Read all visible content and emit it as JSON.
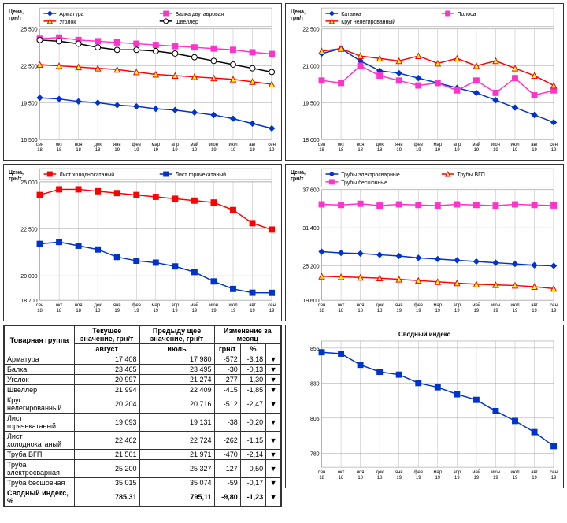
{
  "axis_y_label": "Цена, грн/т",
  "x_labels": [
    "сен 18",
    "окт 18",
    "ноя 18",
    "дек 18",
    "янв 19",
    "фев 19",
    "мар 19",
    "апр 19",
    "май 19",
    "июн 19",
    "июл 19",
    "авг 19",
    "сен 19"
  ],
  "colors": {
    "blue": "#0033cc",
    "magenta": "#ff33cc",
    "red": "#ff0000",
    "black": "#000000",
    "yellow_fill": "#ffff00",
    "white_fill": "#ffffff",
    "grid": "#888888",
    "bg": "#ffffff",
    "text": "#000000"
  },
  "font": {
    "axis": 8,
    "legend": 8,
    "title": 9
  },
  "charts": [
    {
      "id": "c1",
      "ylim": [
        16500,
        25500
      ],
      "yticks": [
        16500,
        19500,
        22500,
        25500
      ],
      "series": [
        {
          "name": "Арматура",
          "color": "#0033cc",
          "marker": "diamond",
          "fill": "#0033cc",
          "values": [
            19900,
            19800,
            19600,
            19500,
            19300,
            19200,
            19000,
            18900,
            18700,
            18500,
            18200,
            17800,
            17408
          ]
        },
        {
          "name": "Балка двутавровая",
          "color": "#ff33cc",
          "marker": "square",
          "fill": "#ff33cc",
          "values": [
            24700,
            24800,
            24600,
            24500,
            24400,
            24300,
            24200,
            24100,
            24000,
            23900,
            23800,
            23600,
            23465
          ]
        },
        {
          "name": "Уголок",
          "color": "#ff0000",
          "marker": "triangle",
          "fill": "#ffff00",
          "values": [
            22600,
            22500,
            22400,
            22300,
            22200,
            22000,
            21800,
            21700,
            21600,
            21500,
            21400,
            21200,
            20997
          ]
        },
        {
          "name": "Швеллер",
          "color": "#000000",
          "marker": "circle",
          "fill": "#ffffff",
          "values": [
            24600,
            24500,
            24300,
            24000,
            23800,
            23800,
            23700,
            23500,
            23200,
            22900,
            22600,
            22300,
            21994
          ]
        }
      ]
    },
    {
      "id": "c2",
      "ylim": [
        18000,
        22500
      ],
      "yticks": [
        18000,
        19500,
        21000,
        22500
      ],
      "series": [
        {
          "name": "Катанка",
          "color": "#0033cc",
          "marker": "diamond",
          "fill": "#0033cc",
          "values": [
            21500,
            21700,
            21200,
            20800,
            20700,
            20500,
            20300,
            20100,
            19900,
            19600,
            19300,
            19000,
            18700
          ]
        },
        {
          "name": "Полоса",
          "color": "#ff33cc",
          "marker": "square",
          "fill": "#ff33cc",
          "values": [
            20400,
            20300,
            21000,
            20600,
            20400,
            20200,
            20300,
            20000,
            20400,
            19900,
            20500,
            19800,
            20000
          ]
        },
        {
          "name": "Круг нелегированный",
          "color": "#ff0000",
          "marker": "triangle",
          "fill": "#ffff00",
          "values": [
            21600,
            21700,
            21400,
            21300,
            21200,
            21400,
            21100,
            21300,
            21000,
            21200,
            20900,
            20600,
            20204
          ]
        }
      ]
    },
    {
      "id": "c3",
      "ylim": [
        18700,
        25000
      ],
      "yticks": [
        18700,
        20000,
        22500,
        25000
      ],
      "series": [
        {
          "name": "Лист холоднокатаный",
          "color": "#ff0000",
          "marker": "square",
          "fill": "#ff0000",
          "values": [
            24300,
            24600,
            24600,
            24500,
            24400,
            24300,
            24200,
            24100,
            24000,
            23900,
            23500,
            22800,
            22462
          ]
        },
        {
          "name": "Лист горячекатаный",
          "color": "#0033cc",
          "marker": "square",
          "fill": "#0033cc",
          "values": [
            21700,
            21800,
            21600,
            21400,
            21000,
            20800,
            20700,
            20500,
            20200,
            19700,
            19300,
            19100,
            19093
          ]
        }
      ]
    },
    {
      "id": "c4",
      "ylim": [
        19600,
        37600
      ],
      "yticks": [
        19600,
        25200,
        31400,
        37600
      ],
      "series": [
        {
          "name": "Трубы электросварные",
          "color": "#0033cc",
          "marker": "diamond",
          "fill": "#0033cc",
          "values": [
            27500,
            27300,
            27200,
            27000,
            26800,
            26500,
            26300,
            26100,
            25900,
            25700,
            25500,
            25300,
            25200
          ]
        },
        {
          "name": "Трубы ВГП",
          "color": "#ff0000",
          "marker": "triangle",
          "fill": "#ffff00",
          "values": [
            23500,
            23400,
            23300,
            23200,
            23000,
            22800,
            22600,
            22400,
            22200,
            22100,
            22000,
            21800,
            21501
          ]
        },
        {
          "name": "Трубы бесшовные",
          "color": "#ff33cc",
          "marker": "square",
          "fill": "#ff33cc",
          "values": [
            35200,
            35100,
            35300,
            35000,
            35200,
            35100,
            35000,
            35200,
            35100,
            35000,
            35200,
            35100,
            35015
          ]
        }
      ]
    }
  ],
  "index_chart": {
    "title": "Сводный индекс",
    "ylim": [
      770,
      860
    ],
    "yticks": [
      780,
      805,
      830,
      855
    ],
    "series": {
      "color": "#0033cc",
      "marker": "square",
      "fill": "#0033cc",
      "values": [
        852,
        851,
        843,
        838,
        836,
        830,
        827,
        822,
        818,
        810,
        803,
        795,
        785
      ]
    }
  },
  "table": {
    "headers": {
      "group": "Товарная группа",
      "curr": "Текущее значение, грн/т",
      "curr_sub": "август",
      "prev": "Предыду щее значение, грн/т",
      "prev_sub": "июль",
      "change": "Изменение за месяц",
      "change_abs": "грн/т",
      "change_pct": "%"
    },
    "rows": [
      {
        "name": "Арматура",
        "curr": "17 408",
        "prev": "17 980",
        "d": "-572",
        "p": "-3,18",
        "a": "▼"
      },
      {
        "name": "Балка",
        "curr": "23 465",
        "prev": "23 495",
        "d": "-30",
        "p": "-0,13",
        "a": "▼"
      },
      {
        "name": "Уголок",
        "curr": "20 997",
        "prev": "21 274",
        "d": "-277",
        "p": "-1,30",
        "a": "▼"
      },
      {
        "name": "Швеллер",
        "curr": "21 994",
        "prev": "22 409",
        "d": "-415",
        "p": "-1,85",
        "a": "▼"
      },
      {
        "name": "Круг нелегированный",
        "curr": "20 204",
        "prev": "20 716",
        "d": "-512",
        "p": "-2,47",
        "a": "▼"
      },
      {
        "name": "Лист горячекатаный",
        "curr": "19 093",
        "prev": "19 131",
        "d": "-38",
        "p": "-0,20",
        "a": "▼"
      },
      {
        "name": "Лист холоднокатаный",
        "curr": "22 462",
        "prev": "22 724",
        "d": "-262",
        "p": "-1,15",
        "a": "▼"
      },
      {
        "name": "Труба ВГП",
        "curr": "21 501",
        "prev": "21 971",
        "d": "-470",
        "p": "-2,14",
        "a": "▼"
      },
      {
        "name": "Труба электросварная",
        "curr": "25 200",
        "prev": "25 327",
        "d": "-127",
        "p": "-0,50",
        "a": "▼"
      },
      {
        "name": "Труба бесшовная",
        "curr": "35 015",
        "prev": "35 074",
        "d": "-59",
        "p": "-0,17",
        "a": "▼"
      }
    ],
    "summary": {
      "name": "Сводный индекс, %",
      "curr": "785,31",
      "prev": "795,11",
      "d": "-9,80",
      "p": "-1,23",
      "a": "▼"
    }
  }
}
